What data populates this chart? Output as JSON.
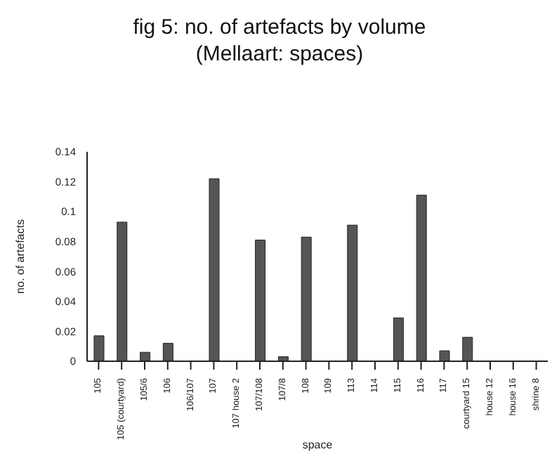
{
  "chart_data": {
    "type": "bar",
    "title": "fig 5: no. of artefacts by volume\n(Mellaart: spaces)",
    "xlabel": "space",
    "ylabel": "no. of artefacts",
    "categories": [
      "105",
      "105 (courtyard)",
      "105/6",
      "106",
      "106/107",
      "107",
      "107 house 2",
      "107/108",
      "107/8",
      "108",
      "109",
      "113",
      "114",
      "115",
      "116",
      "117",
      "courtyard 15",
      "house 12",
      "house 16",
      "shrine 8"
    ],
    "values": [
      0.017,
      0.093,
      0.006,
      0.012,
      0,
      0.122,
      0,
      0.081,
      0.003,
      0.083,
      0,
      0.091,
      0,
      0.029,
      0.111,
      0.007,
      0.016,
      0,
      0,
      0
    ],
    "color": "#555555",
    "ylim": [
      0,
      0.14
    ],
    "yticks": [
      0,
      0.02,
      0.04,
      0.06,
      0.08,
      0.1,
      0.12,
      0.14
    ],
    "grid": false,
    "legend": false
  }
}
